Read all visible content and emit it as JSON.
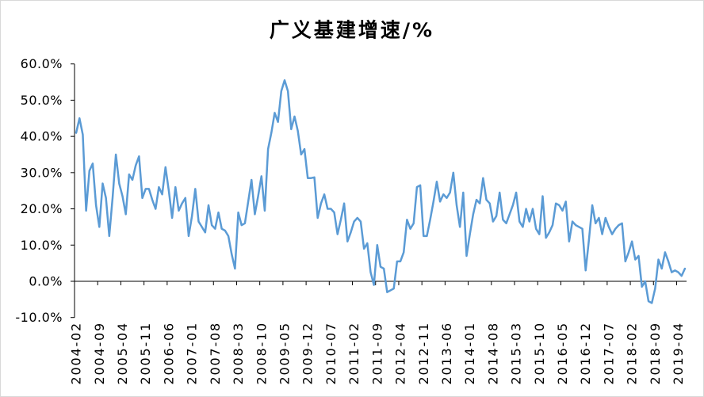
{
  "chart_data": {
    "type": "line",
    "title": "广义基建增速/%",
    "categories": [
      "2004-02",
      "2004-03",
      "2004-04",
      "2004-05",
      "2004-06",
      "2004-07",
      "2004-08",
      "2004-09",
      "2004-10",
      "2004-11",
      "2004-12",
      "2005-01",
      "2005-02",
      "2005-03",
      "2005-04",
      "2005-05",
      "2005-06",
      "2005-07",
      "2005-08",
      "2005-09",
      "2005-10",
      "2005-11",
      "2005-12",
      "2006-01",
      "2006-02",
      "2006-03",
      "2006-04",
      "2006-05",
      "2006-06",
      "2006-07",
      "2006-08",
      "2006-09",
      "2006-10",
      "2006-11",
      "2006-12",
      "2007-01",
      "2007-02",
      "2007-03",
      "2007-04",
      "2007-05",
      "2007-06",
      "2007-07",
      "2007-08",
      "2007-09",
      "2007-10",
      "2007-11",
      "2007-12",
      "2008-01",
      "2008-02",
      "2008-03",
      "2008-04",
      "2008-05",
      "2008-06",
      "2008-07",
      "2008-08",
      "2008-09",
      "2008-10",
      "2008-11",
      "2008-12",
      "2009-01",
      "2009-02",
      "2009-03",
      "2009-04",
      "2009-05",
      "2009-06",
      "2009-07",
      "2009-08",
      "2009-09",
      "2009-10",
      "2009-11",
      "2009-12",
      "2010-01",
      "2010-02",
      "2010-03",
      "2010-04",
      "2010-05",
      "2010-06",
      "2010-07",
      "2010-08",
      "2010-09",
      "2010-10",
      "2010-11",
      "2010-12",
      "2011-01",
      "2011-02",
      "2011-03",
      "2011-04",
      "2011-05",
      "2011-06",
      "2011-07",
      "2011-08",
      "2011-09",
      "2011-10",
      "2011-11",
      "2011-12",
      "2012-01",
      "2012-02",
      "2012-03",
      "2012-04",
      "2012-05",
      "2012-06",
      "2012-07",
      "2012-08",
      "2012-09",
      "2012-10",
      "2012-11",
      "2012-12",
      "2013-01",
      "2013-02",
      "2013-03",
      "2013-04",
      "2013-05",
      "2013-06",
      "2013-07",
      "2013-08",
      "2013-09",
      "2013-10",
      "2013-11",
      "2013-12",
      "2014-01",
      "2014-02",
      "2014-03",
      "2014-04",
      "2014-05",
      "2014-06",
      "2014-07",
      "2014-08",
      "2014-09",
      "2014-10",
      "2014-11",
      "2014-12",
      "2015-01",
      "2015-02",
      "2015-03",
      "2015-04",
      "2015-05",
      "2015-06",
      "2015-07",
      "2015-08",
      "2015-09",
      "2015-10",
      "2015-11",
      "2015-12",
      "2016-01",
      "2016-02",
      "2016-03",
      "2016-04",
      "2016-05",
      "2016-06",
      "2016-07",
      "2016-08",
      "2016-09",
      "2016-10",
      "2016-11",
      "2016-12",
      "2017-01",
      "2017-02",
      "2017-03",
      "2017-04",
      "2017-05",
      "2017-06",
      "2017-07",
      "2017-08",
      "2017-09",
      "2017-10",
      "2017-11",
      "2017-12",
      "2018-01",
      "2018-02",
      "2018-03",
      "2018-04",
      "2018-05",
      "2018-06",
      "2018-07",
      "2018-08",
      "2018-09",
      "2018-10",
      "2018-11",
      "2018-12",
      "2019-01",
      "2019-02",
      "2019-03",
      "2019-04",
      "2019-05",
      "2019-06"
    ],
    "values": [
      41,
      45,
      40.5,
      19.5,
      30.5,
      32.5,
      21,
      15,
      27,
      23,
      12.5,
      23,
      35,
      27,
      23.5,
      18.5,
      29.5,
      28,
      32,
      34.5,
      23,
      25.5,
      25.5,
      22.5,
      20,
      26,
      24,
      31.5,
      25,
      17.5,
      26,
      19.5,
      21.5,
      23,
      12.5,
      18,
      25.5,
      16.5,
      15,
      13.5,
      21,
      15.5,
      14.5,
      19,
      14.5,
      14,
      12.5,
      7.5,
      3.5,
      19,
      15.5,
      16,
      22,
      28,
      18.5,
      23.5,
      29,
      19.5,
      36.5,
      41,
      46.5,
      44,
      52.5,
      55.5,
      52.5,
      42,
      45.5,
      41.5,
      35,
      36.5,
      28.5,
      28.5,
      28.7,
      17.5,
      21.5,
      24,
      20,
      20,
      19,
      13,
      17,
      21.5,
      11,
      13.5,
      16.5,
      17.5,
      16.5,
      9,
      10.5,
      2.5,
      -1,
      10,
      4,
      3.5,
      -3,
      -2.5,
      -2,
      5.5,
      5.5,
      8,
      17,
      14.5,
      16,
      26,
      26.5,
      12.5,
      12.5,
      17,
      22,
      27.5,
      22,
      24,
      23,
      24.5,
      30,
      21,
      15,
      24.5,
      7,
      13,
      18.5,
      22.5,
      21.5,
      28.5,
      22.5,
      21.5,
      16.5,
      18,
      24.5,
      17,
      16,
      18.5,
      21,
      24.5,
      16.5,
      15,
      20,
      16.5,
      20,
      14.5,
      13,
      23.5,
      12,
      13.5,
      15.5,
      21.5,
      21,
      19.5,
      22,
      11,
      16.5,
      15.5,
      15,
      14.5,
      3,
      11.5,
      21,
      16,
      17.5,
      13,
      17.5,
      15,
      13,
      14.5,
      15.5,
      16,
      5.5,
      8,
      11,
      6,
      7,
      -1.5,
      0,
      -5.5,
      -6,
      -2,
      6,
      3.5,
      8,
      5.5,
      2.5,
      3,
      2.5,
      1.5,
      3.5
    ],
    "ylim": [
      -10,
      60
    ],
    "yticks": [
      -10,
      0,
      10,
      20,
      30,
      40,
      50,
      60
    ],
    "ytick_labels": [
      "-10.0%",
      "0.0%",
      "10.0%",
      "20.0%",
      "30.0%",
      "40.0%",
      "50.0%",
      "60.0%"
    ],
    "grid": false,
    "series_color": "#5B9BD5"
  }
}
